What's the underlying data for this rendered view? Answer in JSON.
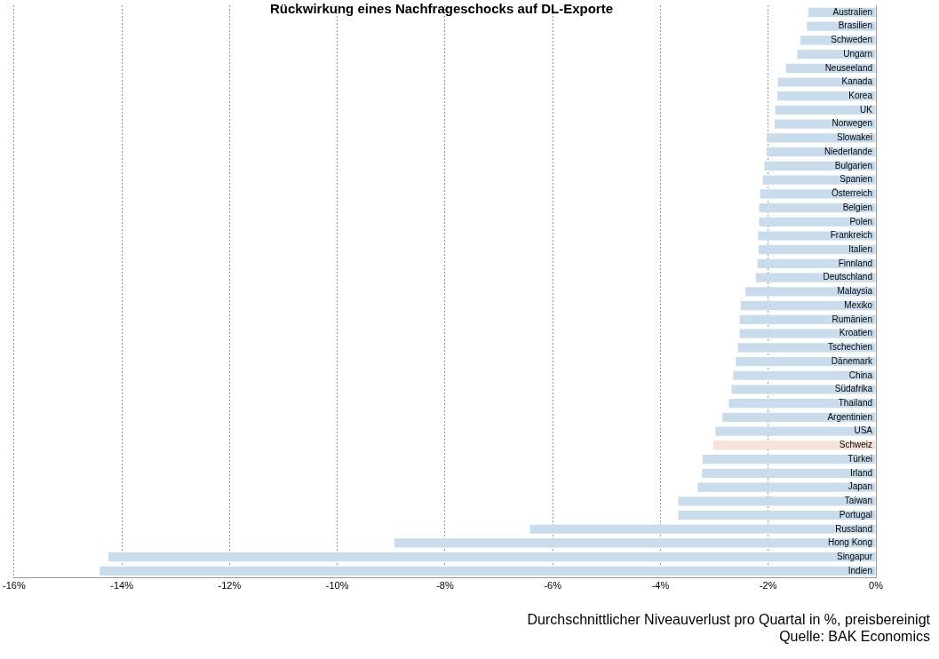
{
  "chart_data": {
    "type": "bar",
    "orientation": "horizontal",
    "title": "Rückwirkung eines Nachfrageschocks auf DL-Exporte",
    "categories": [
      "Australien",
      "Brasilien",
      "Schweden",
      "Ungarn",
      "Neuseeland",
      "Kanada",
      "Korea",
      "UK",
      "Norwegen",
      "Slowakei",
      "Niederlande",
      "Bulgarien",
      "Spanien",
      "Österreich",
      "Belgien",
      "Polen",
      "Frankreich",
      "Italien",
      "Finnland",
      "Deutschland",
      "Malaysia",
      "Mexiko",
      "Rumänien",
      "Kroatien",
      "Tschechien",
      "Dänemark",
      "China",
      "Südafrika",
      "Thailand",
      "Argentinien",
      "USA",
      "Schweiz",
      "Türkei",
      "Irland",
      "Japan",
      "Taiwan",
      "Portugal",
      "Russland",
      "Hong Kong",
      "Singapur",
      "Indien"
    ],
    "values": [
      -1.25,
      -1.28,
      -1.4,
      -1.46,
      -1.67,
      -1.82,
      -1.83,
      -1.87,
      -1.88,
      -2.03,
      -2.03,
      -2.07,
      -2.1,
      -2.15,
      -2.17,
      -2.17,
      -2.19,
      -2.18,
      -2.2,
      -2.23,
      -2.42,
      -2.51,
      -2.53,
      -2.53,
      -2.56,
      -2.6,
      -2.65,
      -2.68,
      -2.73,
      -2.85,
      -2.98,
      -3.02,
      -3.22,
      -3.23,
      -3.31,
      -3.67,
      -3.67,
      -6.42,
      -8.94,
      -14.25,
      -14.41
    ],
    "colors": [
      "#c9dcec",
      "#c9dcec",
      "#c9dcec",
      "#c9dcec",
      "#c9dcec",
      "#c9dcec",
      "#c9dcec",
      "#c9dcec",
      "#c9dcec",
      "#c9dcec",
      "#c9dcec",
      "#c9dcec",
      "#c9dcec",
      "#c9dcec",
      "#c9dcec",
      "#c9dcec",
      "#c9dcec",
      "#c9dcec",
      "#c9dcec",
      "#c9dcec",
      "#c9dcec",
      "#c9dcec",
      "#c9dcec",
      "#c9dcec",
      "#c9dcec",
      "#c9dcec",
      "#c9dcec",
      "#c9dcec",
      "#c9dcec",
      "#c9dcec",
      "#c9dcec",
      "#f5e2d9",
      "#c9dcec",
      "#c9dcec",
      "#c9dcec",
      "#c9dcec",
      "#c9dcec",
      "#c9dcec",
      "#c9dcec",
      "#c9dcec",
      "#c9dcec"
    ],
    "xlim": [
      -16,
      0
    ],
    "xticks": [
      {
        "value": -16,
        "label": "-16%"
      },
      {
        "value": -14,
        "label": "-14%"
      },
      {
        "value": -12,
        "label": "-12%"
      },
      {
        "value": -10,
        "label": "-10%"
      },
      {
        "value": -8,
        "label": "-8%"
      },
      {
        "value": -6,
        "label": "-6%"
      },
      {
        "value": -4,
        "label": "-4%"
      },
      {
        "value": -2,
        "label": "-2%"
      },
      {
        "value": 0,
        "label": "0%"
      }
    ],
    "grid": "x",
    "legend": false,
    "annotations": [
      "Durchschnittlicher Niveauverlust pro Quartal in %, preisbereinigt",
      "Quelle: BAK Economics"
    ]
  }
}
